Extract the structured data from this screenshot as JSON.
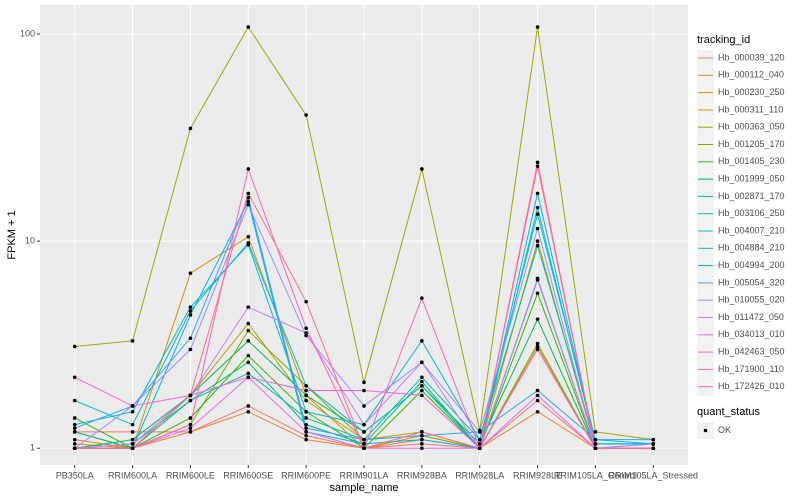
{
  "chart_data": {
    "type": "line",
    "x_label": "sample_name",
    "y_label": "FPKM + 1",
    "categories": [
      "PB350LA",
      "RRIM600LA",
      "RRIM600LE",
      "RRIM600SE",
      "RRIM600PE",
      "RRIM901LA",
      "RRIM928BA",
      "RRIM928LA",
      "RRIM928LE",
      "RRIM105LA_Control",
      "RRIM105LA_Stressed"
    ],
    "log_y": true,
    "ylim": [
      0.83,
      138
    ],
    "yticks": [
      1,
      10,
      100
    ],
    "grid": true,
    "legend_title": "tracking_id",
    "legend_position": "right",
    "point_color": "#000000",
    "quant_status": {
      "title": "quant_status",
      "labels": [
        "OK"
      ]
    },
    "series": [
      {
        "name": "Hb_000039_120",
        "color": "#F8766D",
        "values": [
          1.2,
          1.2,
          1.2,
          1.6,
          1.15,
          1.0,
          1.05,
          1.0,
          1.7,
          1.0,
          1.0
        ]
      },
      {
        "name": "Hb_000112_040",
        "color": "#EA8331",
        "values": [
          1.1,
          1.0,
          1.2,
          1.5,
          1.1,
          1.0,
          1.1,
          1.0,
          1.5,
          1.0,
          1.05
        ]
      },
      {
        "name": "Hb_000230_250",
        "color": "#D89000",
        "values": [
          1.05,
          1.0,
          7.0,
          10.5,
          1.8,
          1.0,
          1.15,
          1.0,
          10.0,
          1.0,
          1.0
        ]
      },
      {
        "name": "Hb_000311_110",
        "color": "#C09B00",
        "values": [
          1.2,
          1.0,
          1.8,
          4.0,
          1.7,
          1.1,
          1.2,
          1.0,
          3.1,
          1.0,
          1.0
        ]
      },
      {
        "name": "Hb_000363_050",
        "color": "#A3A500",
        "values": [
          3.1,
          3.3,
          35,
          108,
          40.6,
          2.08,
          22.3,
          1.22,
          108,
          1.2,
          1.1
        ]
      },
      {
        "name": "Hb_001205_170",
        "color": "#7CAE00",
        "values": [
          1.0,
          1.0,
          1.3,
          3.7,
          2.0,
          1.1,
          1.15,
          1.0,
          3.2,
          1.0,
          1.0
        ]
      },
      {
        "name": "Hb_001405_230",
        "color": "#39B600",
        "values": [
          1.4,
          1.0,
          1.4,
          2.8,
          1.5,
          1.0,
          1.9,
          1.0,
          5.6,
          1.0,
          1.0
        ]
      },
      {
        "name": "Hb_001999_050",
        "color": "#00BB4E",
        "values": [
          1.0,
          1.1,
          1.8,
          3.3,
          1.8,
          1.2,
          2.0,
          1.05,
          4.2,
          1.0,
          1.0
        ]
      },
      {
        "name": "Hb_002871_170",
        "color": "#00BF7D",
        "values": [
          1.2,
          1.0,
          1.7,
          2.6,
          1.3,
          1.05,
          2.1,
          1.0,
          6.5,
          1.0,
          1.0
        ]
      },
      {
        "name": "Hb_003106_250",
        "color": "#00C1A3",
        "values": [
          1.0,
          1.05,
          1.7,
          2.3,
          1.4,
          1.1,
          2.2,
          1.1,
          9.5,
          1.05,
          1.05
        ]
      },
      {
        "name": "Hb_004007_210",
        "color": "#00BFC4",
        "values": [
          1.7,
          1.3,
          4.6,
          9.8,
          2.0,
          1.2,
          2.0,
          1.0,
          14.5,
          1.05,
          1.05
        ]
      },
      {
        "name": "Hb_004884_210",
        "color": "#00BAE0",
        "values": [
          1.3,
          1.5,
          4.8,
          9.6,
          1.5,
          1.3,
          3.3,
          1.1,
          13.5,
          1.1,
          1.05
        ]
      },
      {
        "name": "Hb_004994_200",
        "color": "#00B0F6",
        "values": [
          1.0,
          1.0,
          4.4,
          15.5,
          1.2,
          1.05,
          1.1,
          1.0,
          17.0,
          1.05,
          1.05
        ]
      },
      {
        "name": "Hb_005054_320",
        "color": "#35A2FF",
        "values": [
          1.25,
          1.6,
          3.4,
          16.2,
          1.25,
          1.1,
          1.15,
          1.2,
          1.9,
          1.1,
          1.1
        ]
      },
      {
        "name": "Hb_010055_020",
        "color": "#9590FF",
        "values": [
          1.0,
          1.6,
          3.0,
          15.0,
          3.5,
          1.6,
          2.6,
          1.2,
          11.5,
          1.0,
          1.05
        ]
      },
      {
        "name": "Hb_011472_050",
        "color": "#C77CFF",
        "values": [
          1.0,
          1.05,
          1.8,
          4.8,
          3.6,
          1.3,
          2.6,
          1.0,
          6.6,
          1.0,
          1.0
        ]
      },
      {
        "name": "Hb_034013_010",
        "color": "#E76BF3",
        "values": [
          1.0,
          1.0,
          1.25,
          2.2,
          1.2,
          1.0,
          1.0,
          1.0,
          1.8,
          1.0,
          1.0
        ]
      },
      {
        "name": "Hb_042463_050",
        "color": "#FA62DB",
        "values": [
          2.2,
          1.6,
          1.8,
          2.2,
          1.9,
          1.9,
          1.8,
          1.0,
          3.0,
          1.0,
          1.0
        ]
      },
      {
        "name": "Hb_171900_110",
        "color": "#FF62BC",
        "values": [
          1.0,
          1.0,
          1.3,
          22.3,
          3.8,
          1.0,
          5.3,
          1.0,
          24.0,
          1.0,
          1.0
        ]
      },
      {
        "name": "Hb_172426_010",
        "color": "#FF6C91",
        "values": [
          1.0,
          1.0,
          1.8,
          17.0,
          5.1,
          1.0,
          1.2,
          1.0,
          23.0,
          1.0,
          1.0
        ]
      }
    ]
  }
}
